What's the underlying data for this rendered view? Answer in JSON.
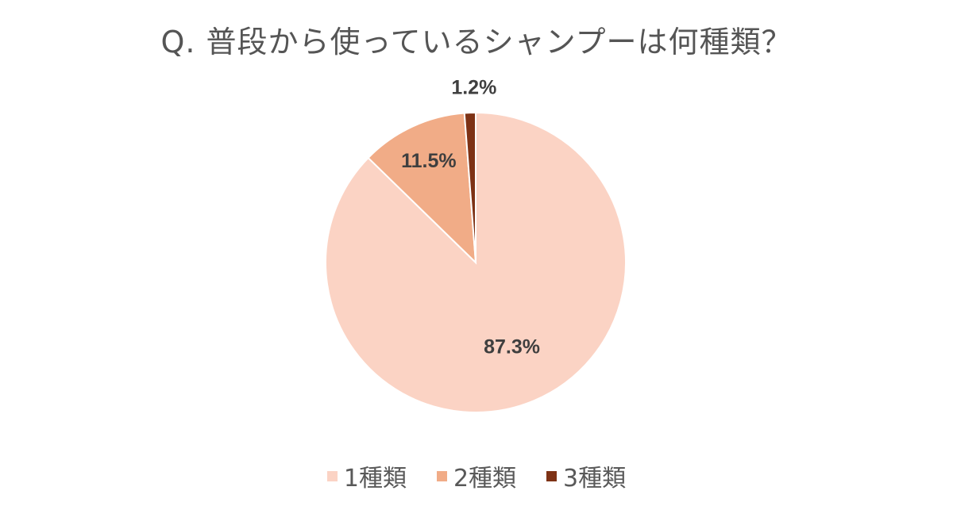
{
  "chart_data": {
    "type": "pie",
    "title": "Q. 普段から使っているシャンプーは何種類？",
    "categories": [
      "1種類",
      "2種類",
      "3種類"
    ],
    "values": [
      87.3,
      11.5,
      1.2
    ],
    "data_labels": [
      "87.3%",
      "11.5%",
      "1.2%"
    ],
    "colors": [
      "#FBD3C4",
      "#F1AC87",
      "#7E3215"
    ],
    "start_angle": "12 o'clock",
    "direction": "clockwise",
    "legend_position": "bottom"
  }
}
